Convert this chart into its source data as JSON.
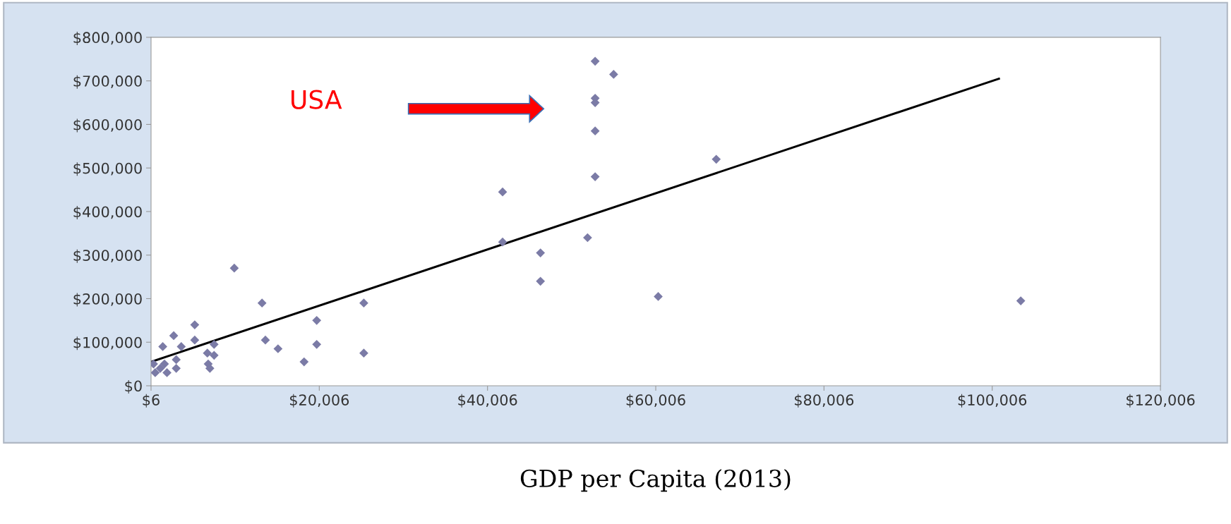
{
  "chart_data": {
    "type": "scatter",
    "xlabel": "GDP per Capita (2013)",
    "grid": false,
    "legend": false,
    "annotations": [
      "USA"
    ],
    "xlim": [
      6,
      120006
    ],
    "ylim": [
      0,
      800000
    ],
    "xticks": [
      {
        "value": 6,
        "label": "$6"
      },
      {
        "value": 20006,
        "label": "$20,006"
      },
      {
        "value": 40006,
        "label": "$40,006"
      },
      {
        "value": 60006,
        "label": "$60,006"
      },
      {
        "value": 80006,
        "label": "$80,006"
      },
      {
        "value": 100006,
        "label": "$100,006"
      },
      {
        "value": 120006,
        "label": "$120,006"
      }
    ],
    "yticks": [
      {
        "value": 0,
        "label": "$0"
      },
      {
        "value": 100000,
        "label": "$100,000"
      },
      {
        "value": 200000,
        "label": "$200,000"
      },
      {
        "value": 300000,
        "label": "$300,000"
      },
      {
        "value": 400000,
        "label": "$400,000"
      },
      {
        "value": 500000,
        "label": "$500,000"
      },
      {
        "value": 600000,
        "label": "$600,000"
      },
      {
        "value": 700000,
        "label": "$700,000"
      },
      {
        "value": 800000,
        "label": "$800,000"
      }
    ],
    "series": [
      {
        "marker": "diamond",
        "color": "#7b7ba6",
        "x": [
          52800,
          55000,
          52800,
          52800,
          52800,
          52800,
          41800,
          41800,
          46300,
          46300,
          51900,
          60300,
          67200,
          103400,
          9900,
          13200,
          25300,
          19700,
          5200,
          2700,
          1400,
          5200,
          3600,
          7500,
          6700,
          7500,
          6800,
          7000,
          3000,
          3000,
          13600,
          15100,
          19700,
          18200,
          25300,
          1100,
          500,
          1900,
          300,
          1600
        ],
        "values": [
          745000,
          715000,
          660000,
          650000,
          585000,
          480000,
          445000,
          330000,
          305000,
          240000,
          340000,
          205000,
          520000,
          195000,
          270000,
          190000,
          190000,
          150000,
          140000,
          115000,
          90000,
          105000,
          90000,
          95000,
          75000,
          70000,
          50000,
          40000,
          60000,
          40000,
          105000,
          85000,
          95000,
          55000,
          75000,
          40000,
          30000,
          30000,
          50000,
          50000
        ]
      },
      {
        "type": "line",
        "color": "#000000",
        "x": [
          6,
          100800
        ],
        "values": [
          55000,
          705000
        ]
      }
    ]
  }
}
